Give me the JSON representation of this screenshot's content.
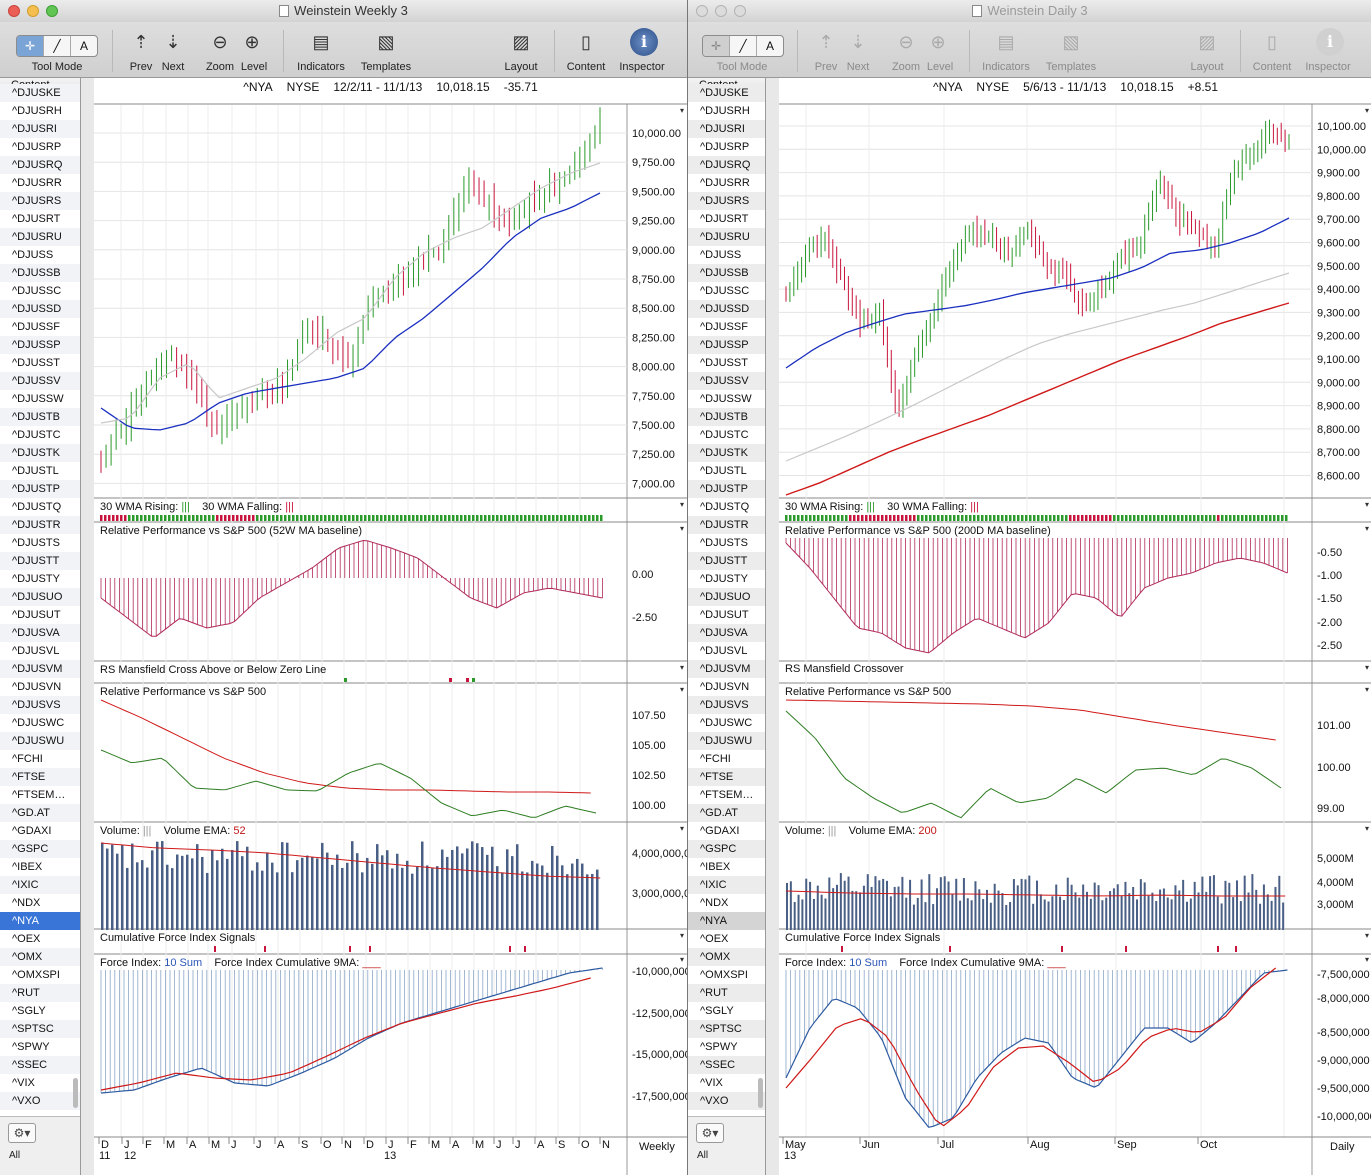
{
  "left": {
    "window_title": "Weinstein Weekly 3",
    "toolbar": {
      "tool_mode": "Tool Mode",
      "prev": "Prev",
      "next": "Next",
      "zoom": "Zoom",
      "level": "Level",
      "indicators": "Indicators",
      "templates": "Templates",
      "layout": "Layout",
      "content": "Content",
      "inspector": "Inspector"
    },
    "sidebar_header": "Content",
    "sidebar_all": "All",
    "chart_header": {
      "symbol": "^NYA",
      "exchange": "NYSE",
      "range": "12/2/11 - 11/1/13",
      "price": "10,018.15",
      "change": "-35.71"
    },
    "price_axis": [
      "10,000.00",
      "9,750.00",
      "9,500.00",
      "9,250.00",
      "9,000.00",
      "8,750.00",
      "8,500.00",
      "8,250.00",
      "8,000.00",
      "7,750.00",
      "7,500.00",
      "7,250.00",
      "7,000.00"
    ],
    "panes": {
      "wma": {
        "rising": "30 WMA Rising:",
        "falling": "30 WMA Falling:"
      },
      "rp52": {
        "title": "Relative Performance vs S&P 500 (52W MA baseline)",
        "axis": [
          "0.00",
          "-2.50"
        ]
      },
      "mansfield": {
        "title": "RS Mansfield Cross Above or Below Zero Line"
      },
      "rp": {
        "title": "Relative Performance vs S&P 500",
        "axis": [
          "107.50",
          "105.00",
          "102.50",
          "100.00"
        ]
      },
      "volume": {
        "label": "Volume:",
        "ema_label": "Volume EMA:",
        "ema_value": "52",
        "axis": [
          "4,000,000,0",
          "3,000,000,0"
        ]
      },
      "cfi_signals": {
        "title": "Cumulative Force Index Signals"
      },
      "force": {
        "label": "Force Index:",
        "sum": "10 Sum",
        "cum_label": "Force Index Cumulative 9MA:",
        "axis": [
          "-10,000,000",
          "-12,500,000",
          "-15,000,000",
          "-17,500,000"
        ]
      }
    },
    "x_axis": [
      "D",
      "J",
      "F",
      "M",
      "A",
      "M",
      "J",
      "J",
      "A",
      "S",
      "O",
      "N",
      "D",
      "J",
      "F",
      "M",
      "A",
      "M",
      "J",
      "J",
      "A",
      "S",
      "O",
      "N"
    ],
    "x_years": [
      "11",
      "12",
      "13"
    ],
    "period": "Weekly"
  },
  "right": {
    "window_title": "Weinstein Daily 3",
    "toolbar": {
      "tool_mode": "Tool Mode",
      "prev": "Prev",
      "next": "Next",
      "zoom": "Zoom",
      "level": "Level",
      "indicators": "Indicators",
      "templates": "Templates",
      "layout": "Layout",
      "content": "Content",
      "inspector": "Inspector"
    },
    "sidebar_header": "Content",
    "sidebar_all": "All",
    "chart_header": {
      "symbol": "^NYA",
      "exchange": "NYSE",
      "range": "5/6/13 - 11/1/13",
      "price": "10,018.15",
      "change": "+8.51"
    },
    "price_axis": [
      "10,100.00",
      "10,000.00",
      "9,900.00",
      "9,800.00",
      "9,700.00",
      "9,600.00",
      "9,500.00",
      "9,400.00",
      "9,300.00",
      "9,200.00",
      "9,100.00",
      "9,000.00",
      "8,900.00",
      "8,800.00",
      "8,700.00",
      "8,600.00"
    ],
    "panes": {
      "wma": {
        "rising": "30 WMA Rising:",
        "falling": "30 WMA Falling:"
      },
      "rp200": {
        "title": "Relative Performance vs S&P 500 (200D MA baseline)",
        "axis": [
          "-0.50",
          "-1.00",
          "-1.50",
          "-2.00",
          "-2.50"
        ]
      },
      "mansfield": {
        "title": "RS Mansfield Crossover"
      },
      "rp": {
        "title": "Relative Performance vs S&P 500",
        "axis": [
          "101.00",
          "100.00",
          "99.00"
        ]
      },
      "volume": {
        "label": "Volume:",
        "ema_label": "Volume EMA:",
        "ema_value": "200",
        "axis": [
          "5,000M",
          "4,000M",
          "3,000M"
        ]
      },
      "cfi_signals": {
        "title": "Cumulative Force Index Signals"
      },
      "force": {
        "label": "Force Index:",
        "sum": "10 Sum",
        "cum_label": "Force Index Cumulative 9MA:",
        "axis": [
          "-7,500,000",
          "-8,000,000",
          "-8,500,000",
          "-9,000,000",
          "-9,500,000",
          "-10,000,000"
        ]
      }
    },
    "x_axis": [
      "May",
      "Jun",
      "Jul",
      "Aug",
      "Sep",
      "Oct"
    ],
    "x_years": [
      "13"
    ],
    "period": "Daily"
  },
  "sidebar_symbols": [
    "^DJUSKE",
    "^DJUSRH",
    "^DJUSRI",
    "^DJUSRP",
    "^DJUSRQ",
    "^DJUSRR",
    "^DJUSRS",
    "^DJUSRT",
    "^DJUSRU",
    "^DJUSS",
    "^DJUSSB",
    "^DJUSSC",
    "^DJUSSD",
    "^DJUSSF",
    "^DJUSSP",
    "^DJUSST",
    "^DJUSSV",
    "^DJUSSW",
    "^DJUSTB",
    "^DJUSTC",
    "^DJUSTK",
    "^DJUSTL",
    "^DJUSTP",
    "^DJUSTQ",
    "^DJUSTR",
    "^DJUSTS",
    "^DJUSTT",
    "^DJUSTY",
    "^DJUSUO",
    "^DJUSUT",
    "^DJUSVA",
    "^DJUSVL",
    "^DJUSVM",
    "^DJUSVN",
    "^DJUSVS",
    "^DJUSWC",
    "^DJUSWU",
    "^FCHI",
    "^FTSE",
    "^FTSEM…",
    "^GD.AT",
    "^GDAXI",
    "^GSPC",
    "^IBEX",
    "^IXIC",
    "^NDX",
    "^NYA",
    "^OEX",
    "^OMX",
    "^OMXSPI",
    "^RUT",
    "^SGLY",
    "^SPTSC",
    "^SPWY",
    "^SSEC",
    "^VIX",
    "^VXO"
  ],
  "selected_symbol": "^NYA",
  "colors": {
    "up_bar": "#2a9a2a",
    "down_bar": "#c8143c",
    "ma_blue": "#1a2fbf",
    "ma_red": "#d01818",
    "ma_gray": "#c4c4c4",
    "rs_fill": "#b02a5a",
    "rs_green": "#2e7d22",
    "selection": "#3875d7"
  }
}
